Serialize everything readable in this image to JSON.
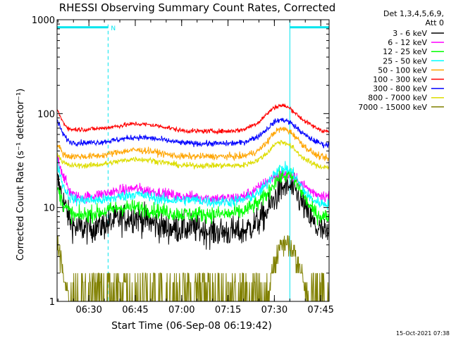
{
  "chart_data": {
    "type": "line",
    "title": "RHESSI Observing Summary Count Rates, Corrected",
    "xlabel": "Start Time (06-Sep-08 06:19:42)",
    "ylabel": "Corrected Count Rate (s⁻¹ detector⁻¹)",
    "footer": "15-Oct-2021 07:38",
    "y_scale": "log",
    "ylim": [
      1,
      1000
    ],
    "xlim_minutes": [
      0,
      88
    ],
    "xlim_labels": [
      "06:19:42",
      "07:47:42"
    ],
    "x_ticks": [
      {
        "label": "06:30",
        "minutes": 10.3
      },
      {
        "label": "06:45",
        "minutes": 25.3
      },
      {
        "label": "07:00",
        "minutes": 40.3
      },
      {
        "label": "07:15",
        "minutes": 55.3
      },
      {
        "label": "07:30",
        "minutes": 70.3
      },
      {
        "label": "07:45",
        "minutes": 85.3
      }
    ],
    "y_ticks": [
      {
        "label": "1",
        "value": 1
      },
      {
        "label": "10",
        "value": 10
      },
      {
        "label": "100",
        "value": 100
      },
      {
        "label": "1000",
        "value": 1000
      }
    ],
    "legend": {
      "header": [
        "Det 1,3,4,5,6,9,",
        "Att 0"
      ],
      "placement": "right"
    },
    "annotations": {
      "night_label": "N",
      "night_intervals": [
        [
          0,
          16.5
        ],
        [
          75.3,
          88
        ]
      ],
      "night_bar_y": 830
    },
    "x": [
      0,
      2,
      4,
      6,
      10,
      15,
      20,
      25,
      30,
      35,
      40,
      45,
      50,
      55,
      60,
      65,
      68,
      70,
      72,
      74,
      76,
      78,
      80,
      82,
      84,
      86,
      88
    ],
    "series": [
      {
        "name": "3 - 6 keV",
        "color": "#000000",
        "noise": 0.32,
        "values": [
          20,
          12,
          7.5,
          6,
          6,
          6.5,
          7.5,
          8,
          7,
          6,
          6,
          6,
          5.5,
          5.5,
          5.5,
          7,
          9,
          12,
          15,
          17,
          16,
          13,
          10,
          7.5,
          6,
          5.5,
          5
        ]
      },
      {
        "name": "6 - 12 keV",
        "color": "#ff00ff",
        "noise": 0.12,
        "values": [
          35,
          22,
          15,
          13,
          13,
          14,
          15,
          16,
          15,
          14,
          13,
          13,
          12.5,
          12.5,
          13,
          16,
          19,
          21,
          22,
          22,
          21,
          19,
          17,
          15,
          14,
          13.5,
          13
        ]
      },
      {
        "name": "12 - 25 keV",
        "color": "#00ff00",
        "noise": 0.17,
        "values": [
          16,
          11,
          9,
          8,
          8.5,
          9,
          10,
          10,
          9.5,
          9,
          8.5,
          8.5,
          8.5,
          8.5,
          9,
          11,
          14,
          18,
          21,
          22,
          21,
          17,
          13,
          10,
          8.5,
          8,
          8
        ]
      },
      {
        "name": "25 - 50 keV",
        "color": "#00ffff",
        "noise": 0.12,
        "values": [
          30,
          17,
          13,
          12,
          12,
          12,
          13,
          14,
          13,
          12,
          12,
          12,
          11.5,
          11.5,
          12,
          14,
          18,
          23,
          26,
          26,
          24,
          19,
          15,
          12.5,
          11.5,
          11,
          11
        ]
      },
      {
        "name": "50 - 100 keV",
        "color": "#ffa500",
        "noise": 0.07,
        "values": [
          48,
          37,
          35,
          35,
          35,
          36,
          39,
          41,
          40,
          37,
          35,
          35,
          35,
          35,
          35,
          40,
          50,
          62,
          68,
          68,
          62,
          53,
          45,
          40,
          36,
          34,
          33
        ]
      },
      {
        "name": "100 - 300 keV",
        "color": "#ff0000",
        "noise": 0.05,
        "values": [
          110,
          80,
          68,
          68,
          68,
          70,
          74,
          78,
          76,
          72,
          66,
          65,
          65,
          65,
          67,
          80,
          100,
          115,
          122,
          120,
          110,
          95,
          84,
          76,
          70,
          66,
          64
        ]
      },
      {
        "name": "300 - 800 keV",
        "color": "#0000ff",
        "noise": 0.06,
        "values": [
          85,
          60,
          50,
          49,
          49,
          50,
          53,
          56,
          55,
          52,
          49,
          48,
          48,
          48,
          49,
          57,
          69,
          80,
          86,
          85,
          78,
          68,
          60,
          54,
          50,
          47,
          46
        ]
      },
      {
        "name": "800 - 7000 keV",
        "color": "#dddd00",
        "noise": 0.06,
        "values": [
          38,
          30,
          28,
          28,
          28,
          29,
          31,
          33,
          32,
          30,
          28,
          28,
          28,
          28,
          28,
          32,
          38,
          46,
          50,
          49,
          44,
          38,
          33,
          30,
          28,
          27,
          27
        ]
      },
      {
        "name": "7000 - 15000 keV",
        "color": "#808000",
        "noise": 0,
        "values": [
          4.5,
          2,
          1,
          1,
          1,
          1,
          1,
          1,
          1,
          1,
          1,
          1,
          1,
          1,
          1,
          1,
          1,
          2.5,
          3.5,
          4.5,
          3.5,
          2.5,
          1.5,
          1,
          1,
          1,
          1
        ]
      }
    ]
  }
}
